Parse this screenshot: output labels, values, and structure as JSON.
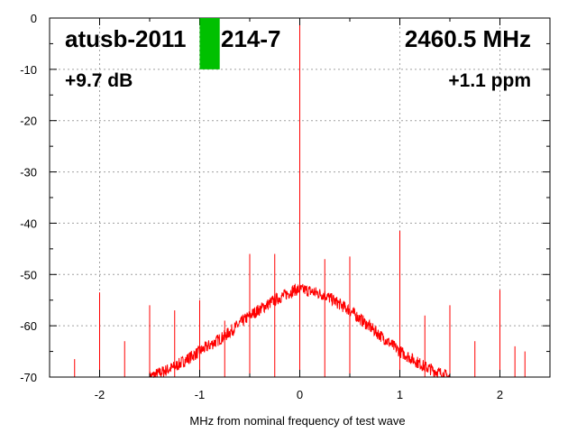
{
  "chart_data": {
    "type": "line",
    "title": "",
    "xlabel": "MHz from nominal frequency of test wave",
    "ylabel": "",
    "xlim": [
      -2.5,
      2.5
    ],
    "ylim": [
      -70,
      0
    ],
    "xticks": [
      -2,
      -1,
      0,
      1,
      2
    ],
    "yticks": [
      0,
      -10,
      -20,
      -30,
      -40,
      -50,
      -60,
      -70
    ],
    "grid": true,
    "series_color": "#ff0000",
    "marker_color": "#00c000",
    "annotations": {
      "device": "atusb-2011",
      "device_suffix": "214-7",
      "frequency": "2460.5 MHz",
      "gain": "+9.7 dB",
      "offset": "+1.1 ppm"
    },
    "marker": {
      "x_from": -1.0,
      "x_to": -0.8,
      "y_from": 0,
      "y_to": -10
    },
    "noise_envelope": [
      {
        "x": -1.5,
        "y": -70
      },
      {
        "x": -1.25,
        "y": -68
      },
      {
        "x": -1.0,
        "y": -65
      },
      {
        "x": -0.75,
        "y": -62
      },
      {
        "x": -0.5,
        "y": -58
      },
      {
        "x": -0.25,
        "y": -55
      },
      {
        "x": -0.05,
        "y": -53
      },
      {
        "x": 0.05,
        "y": -53
      },
      {
        "x": 0.25,
        "y": -54
      },
      {
        "x": 0.5,
        "y": -57
      },
      {
        "x": 0.75,
        "y": -61
      },
      {
        "x": 1.0,
        "y": -65
      },
      {
        "x": 1.25,
        "y": -68
      },
      {
        "x": 1.5,
        "y": -70
      }
    ],
    "spurs": [
      {
        "x": -2.25,
        "y": -66.5
      },
      {
        "x": -2.0,
        "y": -53.5
      },
      {
        "x": -1.75,
        "y": -63
      },
      {
        "x": -1.5,
        "y": -56
      },
      {
        "x": -1.25,
        "y": -57
      },
      {
        "x": -1.0,
        "y": -55
      },
      {
        "x": -0.75,
        "y": -59
      },
      {
        "x": -0.5,
        "y": -46
      },
      {
        "x": -0.25,
        "y": -46
      },
      {
        "x": 0.0,
        "y": 0
      },
      {
        "x": 0.25,
        "y": -47
      },
      {
        "x": 0.5,
        "y": -46.5
      },
      {
        "x": 1.0,
        "y": -41.5
      },
      {
        "x": 1.25,
        "y": -58
      },
      {
        "x": 1.5,
        "y": -56
      },
      {
        "x": 1.75,
        "y": -63
      },
      {
        "x": 2.0,
        "y": -53
      },
      {
        "x": 2.15,
        "y": -64
      },
      {
        "x": 2.25,
        "y": -65
      }
    ]
  }
}
